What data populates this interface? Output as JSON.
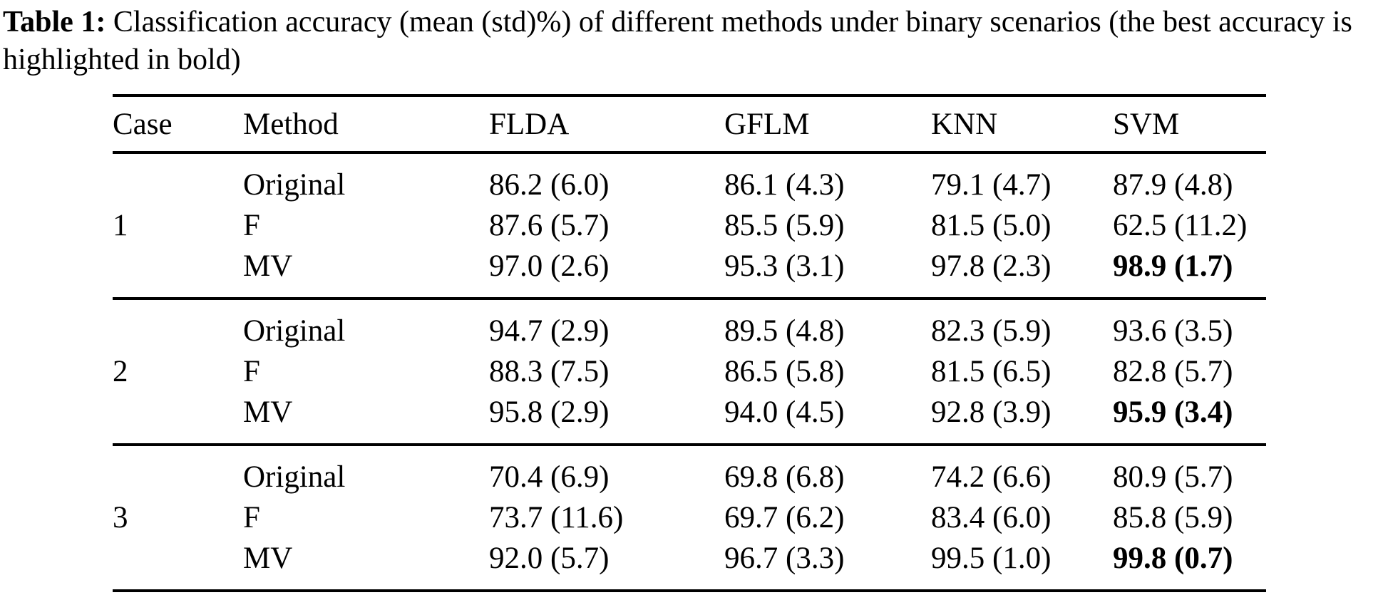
{
  "caption": {
    "label": "Table 1:",
    "text": " Classification accuracy (mean (std)%) of different methods under binary scenarios (the best accuracy is highlighted in bold)"
  },
  "table": {
    "columns": [
      "Case",
      "Method",
      "FLDA",
      "GFLM",
      "KNN",
      "SVM"
    ],
    "groups": [
      {
        "case": "1",
        "rows": [
          {
            "method": "Original",
            "values": [
              "86.2 (6.0)",
              "86.1 (4.3)",
              "79.1 (4.7)",
              "87.9 (4.8)"
            ],
            "best_column": null
          },
          {
            "method": "F",
            "values": [
              "87.6 (5.7)",
              "85.5 (5.9)",
              "81.5 (5.0)",
              "62.5 (11.2)"
            ],
            "best_column": null
          },
          {
            "method": "MV",
            "values": [
              "97.0 (2.6)",
              "95.3 (3.1)",
              "97.8 (2.3)",
              "98.9 (1.7)"
            ],
            "best_column": "SVM"
          }
        ]
      },
      {
        "case": "2",
        "rows": [
          {
            "method": "Original",
            "values": [
              "94.7 (2.9)",
              "89.5 (4.8)",
              "82.3 (5.9)",
              "93.6 (3.5)"
            ],
            "best_column": null
          },
          {
            "method": "F",
            "values": [
              "88.3 (7.5)",
              "86.5 (5.8)",
              "81.5 (6.5)",
              "82.8 (5.7)"
            ],
            "best_column": null
          },
          {
            "method": "MV",
            "values": [
              "95.8 (2.9)",
              "94.0 (4.5)",
              "92.8 (3.9)",
              "95.9 (3.4)"
            ],
            "best_column": "SVM"
          }
        ]
      },
      {
        "case": "3",
        "rows": [
          {
            "method": "Original",
            "values": [
              "70.4 (6.9)",
              "69.8 (6.8)",
              "74.2 (6.6)",
              "80.9 (5.7)"
            ],
            "best_column": null
          },
          {
            "method": "F",
            "values": [
              "73.7 (11.6)",
              "69.7 (6.2)",
              "83.4 (6.0)",
              "85.8 (5.9)"
            ],
            "best_column": null
          },
          {
            "method": "MV",
            "values": [
              "92.0 (5.7)",
              "96.7 (3.3)",
              "99.5 (1.0)",
              "99.8 (0.7)"
            ],
            "best_column": "SVM"
          }
        ]
      }
    ]
  },
  "colors": {
    "text": "#000000",
    "background": "#ffffff",
    "rule": "#000000"
  }
}
